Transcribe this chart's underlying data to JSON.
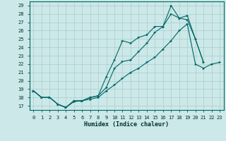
{
  "xlabel": "Humidex (Indice chaleur)",
  "bg_color": "#cce8e8",
  "grid_color": "#aacccc",
  "line_color": "#006666",
  "xlim": [
    -0.5,
    23.5
  ],
  "ylim": [
    16.5,
    29.5
  ],
  "xticks": [
    0,
    1,
    2,
    3,
    4,
    5,
    6,
    7,
    8,
    9,
    10,
    11,
    12,
    13,
    14,
    15,
    16,
    17,
    18,
    19,
    20,
    21,
    22,
    23
  ],
  "yticks": [
    17,
    18,
    19,
    20,
    21,
    22,
    23,
    24,
    25,
    26,
    27,
    28,
    29
  ],
  "line_top": {
    "x": [
      0,
      1,
      2,
      3,
      4,
      5,
      6,
      7,
      8,
      9,
      10,
      11,
      12,
      13,
      14,
      15,
      16,
      17,
      18,
      19,
      20,
      21
    ],
    "y": [
      18.8,
      18.0,
      18.0,
      17.2,
      16.8,
      17.6,
      17.6,
      18.0,
      18.2,
      20.5,
      22.5,
      24.8,
      24.5,
      25.2,
      25.5,
      26.5,
      26.5,
      29.0,
      27.5,
      27.8,
      25.0,
      22.2
    ]
  },
  "line_mid": {
    "x": [
      0,
      1,
      2,
      3,
      4,
      5,
      6,
      7,
      8,
      9,
      10,
      11,
      12,
      13,
      14,
      15,
      16,
      17,
      18,
      19,
      20,
      21
    ],
    "y": [
      18.8,
      18.0,
      18.0,
      17.2,
      16.8,
      17.6,
      17.6,
      18.0,
      18.2,
      19.2,
      21.5,
      22.3,
      22.5,
      23.5,
      24.5,
      25.8,
      26.5,
      28.0,
      27.5,
      27.3,
      25.0,
      22.2
    ]
  },
  "line_bot": {
    "x": [
      0,
      1,
      2,
      3,
      4,
      5,
      6,
      7,
      8,
      9,
      10,
      11,
      12,
      13,
      14,
      15,
      16,
      17,
      18,
      19,
      20,
      21,
      22,
      23
    ],
    "y": [
      18.8,
      18.0,
      18.0,
      17.2,
      16.8,
      17.5,
      17.6,
      17.8,
      18.0,
      18.8,
      19.5,
      20.3,
      21.0,
      21.5,
      22.2,
      22.8,
      23.8,
      24.8,
      26.0,
      26.8,
      22.0,
      21.5,
      22.0,
      22.2
    ]
  }
}
